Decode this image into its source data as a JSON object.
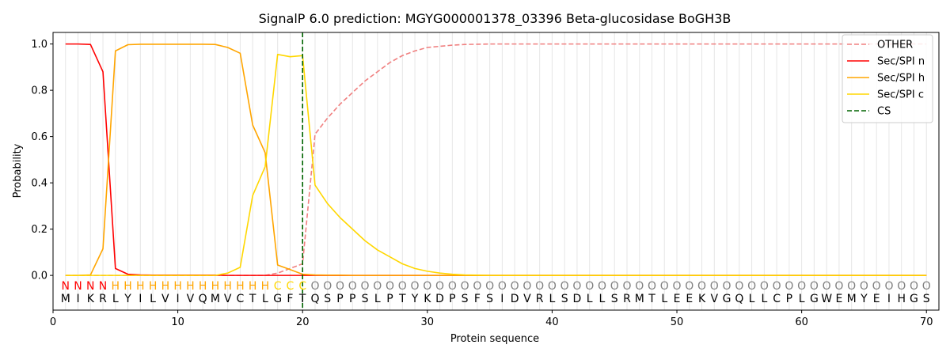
{
  "chart_data": {
    "type": "line",
    "title": "SignalP 6.0 prediction: MGYG000001378_03396 Beta-glucosidase BoGH3B",
    "xlabel": "Protein sequence",
    "ylabel": "Probability",
    "xlim": [
      0,
      71
    ],
    "ylim": [
      -0.15,
      1.05
    ],
    "xticks": [
      "0",
      "10",
      "20",
      "30",
      "40",
      "50",
      "60",
      "70"
    ],
    "yticks": [
      "0.0",
      "0.2",
      "0.4",
      "0.6",
      "0.8",
      "1.0"
    ],
    "grid": "vertical lines at each residue",
    "legend_position": "top-right",
    "sequence": [
      "M",
      "I",
      "K",
      "R",
      "L",
      "Y",
      "I",
      "L",
      "V",
      "I",
      "V",
      "Q",
      "M",
      "V",
      "C",
      "T",
      "L",
      "G",
      "F",
      "T",
      "Q",
      "S",
      "P",
      "P",
      "S",
      "L",
      "P",
      "T",
      "Y",
      "K",
      "D",
      "P",
      "S",
      "F",
      "S",
      "I",
      "D",
      "V",
      "R",
      "L",
      "S",
      "D",
      "L",
      "L",
      "S",
      "R",
      "M",
      "T",
      "L",
      "E",
      "E",
      "K",
      "V",
      "G",
      "Q",
      "L",
      "L",
      "C",
      "P",
      "L",
      "G",
      "W",
      "E",
      "M",
      "Y",
      "E",
      "I",
      "H",
      "G",
      "S"
    ],
    "predicted_labels": [
      "N",
      "N",
      "N",
      "N",
      "H",
      "H",
      "H",
      "H",
      "H",
      "H",
      "H",
      "H",
      "H",
      "H",
      "H",
      "H",
      "H",
      "C",
      "C",
      "C",
      "O",
      "O",
      "O",
      "O",
      "O",
      "O",
      "O",
      "O",
      "O",
      "O",
      "O",
      "O",
      "O",
      "O",
      "O",
      "O",
      "O",
      "O",
      "O",
      "O",
      "O",
      "O",
      "O",
      "O",
      "O",
      "O",
      "O",
      "O",
      "O",
      "O",
      "O",
      "O",
      "O",
      "O",
      "O",
      "O",
      "O",
      "O",
      "O",
      "O",
      "O",
      "O",
      "O",
      "O",
      "O",
      "O",
      "O",
      "O",
      "O",
      "O"
    ],
    "label_colors": {
      "N": "#ff0000",
      "H": "#ffa500",
      "C": "#ffd700",
      "O": "#808080"
    },
    "series": [
      {
        "name": "OTHER",
        "color": "#f08080",
        "style": "dashed",
        "values": [
          0,
          0,
          0,
          0,
          0,
          0,
          0,
          0,
          0,
          0,
          0,
          0,
          0,
          0,
          0,
          0,
          0,
          0.01,
          0.03,
          0.05,
          0.61,
          0.68,
          0.74,
          0.79,
          0.84,
          0.88,
          0.92,
          0.95,
          0.97,
          0.985,
          0.99,
          0.995,
          0.998,
          0.999,
          1,
          1,
          1,
          1,
          1,
          1,
          1,
          1,
          1,
          1,
          1,
          1,
          1,
          1,
          1,
          1,
          1,
          1,
          1,
          1,
          1,
          1,
          1,
          1,
          1,
          1,
          1,
          1,
          1,
          1,
          1,
          1,
          1,
          1,
          1,
          1
        ]
      },
      {
        "name": "Sec/SPI n",
        "color": "#ff0000",
        "style": "solid",
        "values": [
          1,
          1,
          0.998,
          0.88,
          0.03,
          0.005,
          0.002,
          0.001,
          0.001,
          0.001,
          0.001,
          0.001,
          0.001,
          0,
          0,
          0,
          0,
          0,
          0,
          0,
          0,
          0,
          0,
          0,
          0,
          0,
          0,
          0,
          0,
          0,
          0,
          0,
          0,
          0,
          0,
          0,
          0,
          0,
          0,
          0,
          0,
          0,
          0,
          0,
          0,
          0,
          0,
          0,
          0,
          0,
          0,
          0,
          0,
          0,
          0,
          0,
          0,
          0,
          0,
          0,
          0,
          0,
          0,
          0,
          0,
          0,
          0,
          0,
          0,
          0
        ]
      },
      {
        "name": "Sec/SPI h",
        "color": "#ffa500",
        "style": "solid",
        "values": [
          0,
          0,
          0.002,
          0.115,
          0.97,
          0.997,
          0.999,
          0.999,
          0.999,
          0.999,
          0.999,
          0.999,
          0.998,
          0.985,
          0.96,
          0.65,
          0.53,
          0.045,
          0.025,
          0.005,
          0.002,
          0.001,
          0.001,
          0,
          0,
          0,
          0,
          0,
          0,
          0,
          0,
          0,
          0,
          0,
          0,
          0,
          0,
          0,
          0,
          0,
          0,
          0,
          0,
          0,
          0,
          0,
          0,
          0,
          0,
          0,
          0,
          0,
          0,
          0,
          0,
          0,
          0,
          0,
          0,
          0,
          0,
          0,
          0,
          0,
          0,
          0,
          0,
          0,
          0,
          0
        ]
      },
      {
        "name": "Sec/SPI c",
        "color": "#ffd700",
        "style": "solid",
        "values": [
          0,
          0,
          0,
          0,
          0,
          0,
          0,
          0,
          0,
          0,
          0,
          0,
          0,
          0.01,
          0.035,
          0.345,
          0.47,
          0.955,
          0.945,
          0.95,
          0.39,
          0.31,
          0.25,
          0.2,
          0.15,
          0.11,
          0.08,
          0.05,
          0.03,
          0.018,
          0.01,
          0.005,
          0.002,
          0.001,
          0,
          0,
          0,
          0,
          0,
          0,
          0,
          0,
          0,
          0,
          0,
          0,
          0,
          0,
          0,
          0,
          0,
          0,
          0,
          0,
          0,
          0,
          0,
          0,
          0,
          0,
          0,
          0,
          0,
          0,
          0,
          0,
          0,
          0,
          0,
          0
        ]
      }
    ],
    "cleavage_site": {
      "name": "CS",
      "x": 20,
      "color": "#006400",
      "style": "dashed"
    }
  }
}
